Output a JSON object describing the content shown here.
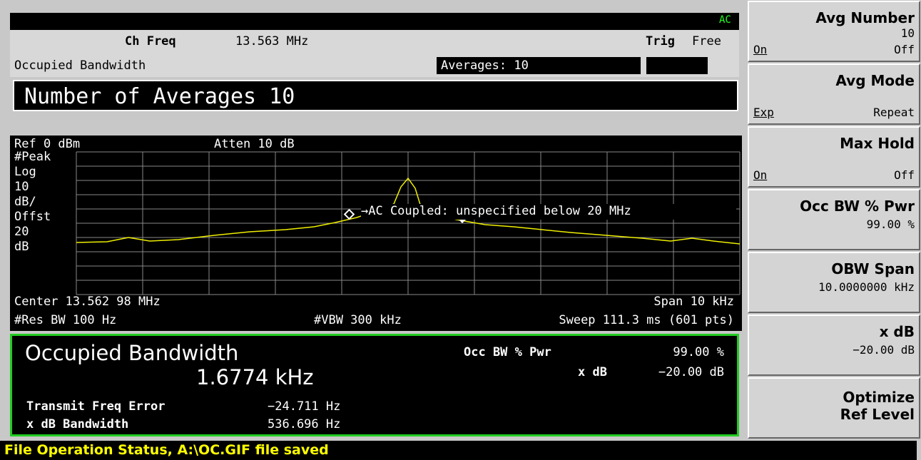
{
  "header": {
    "status": "AC",
    "ch_freq_label": "Ch Freq",
    "ch_freq": "13.563 MHz",
    "trig_label": "Trig",
    "trig": "Free",
    "measurement": "Occupied Bandwidth",
    "averages": "Averages: 10",
    "active_function": "Number of Averages 10"
  },
  "graph": {
    "ref": "Ref 0 dBm",
    "atten": "Atten 10 dB",
    "scale_labels": [
      "#Peak",
      "Log",
      "10",
      "dB/",
      "Offst",
      "20",
      "dB"
    ],
    "annotation": "→AC Coupled: unspecified below 20 MHz",
    "center": "Center 13.562 98 MHz",
    "span": "Span 10 kHz",
    "res_bw": "#Res BW 100 Hz",
    "vbw": "#VBW 300 kHz",
    "sweep": "Sweep 111.3 ms (601 pts)"
  },
  "results": {
    "title": "Occupied Bandwidth",
    "value": "1.6774 kHz",
    "occ_bw_label": "Occ BW % Pwr",
    "occ_bw": "99.00 %",
    "xdb_label": "x dB",
    "xdb": "−20.00 dB",
    "tfe_label": "Transmit Freq Error",
    "tfe": "−24.711 Hz",
    "xdb_bw_label": "x dB Bandwidth",
    "xdb_bw": "536.696 Hz"
  },
  "softkeys": [
    {
      "label": "Avg Number",
      "value": "10",
      "on": "On",
      "off": "Off"
    },
    {
      "label": "Avg Mode",
      "on": "Exp",
      "off": "Repeat"
    },
    {
      "label": "Max Hold",
      "on": "On",
      "off": "Off"
    },
    {
      "label": "Occ BW % Pwr",
      "value": "99.00 %"
    },
    {
      "label": "OBW Span",
      "value": "10.0000000 kHz"
    },
    {
      "label": "x dB",
      "value": "−20.00 dB"
    },
    {
      "label": "Optimize",
      "label2": "Ref Level"
    }
  ],
  "status_bar": "File Operation Status, A:\\OC.GIF file saved"
}
